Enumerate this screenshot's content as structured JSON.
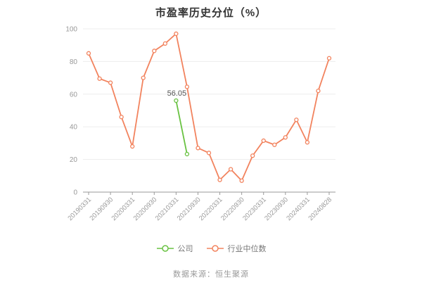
{
  "page": {
    "title": "市盈率历史分位（%）",
    "source_text": "数据来源：恒生聚源"
  },
  "colors": {
    "company_series": "#69c242",
    "industry_series": "#f2835e",
    "grid": "#ededed",
    "axis": "#999999",
    "axis_text": "#999999",
    "annotation_text": "#555555",
    "title_text": "#333333"
  },
  "chart_data": {
    "type": "line",
    "title": "市盈率历史分位（%）",
    "categories": [
      "20190331",
      "20190630",
      "20190930",
      "20191231",
      "20200331",
      "20200630",
      "20200930",
      "20201231",
      "20210331",
      "20210630",
      "20210930",
      "20211231",
      "20220331",
      "20220630",
      "20220930",
      "20221231",
      "20230331",
      "20230630",
      "20230930",
      "20231231",
      "20240331",
      "20240630",
      "20240828"
    ],
    "x_tick_labels_shown": [
      "20190331",
      "20190930",
      "20200331",
      "20200930",
      "20210331",
      "20210930",
      "20220331",
      "20220930",
      "20230331",
      "20230930",
      "20240331",
      "20240828"
    ],
    "series": [
      {
        "name": "公司",
        "color": "#69c242",
        "values": [
          null,
          null,
          null,
          null,
          null,
          null,
          null,
          null,
          56.05,
          23.3,
          null,
          null,
          null,
          null,
          null,
          null,
          null,
          null,
          null,
          null,
          null,
          null,
          null
        ]
      },
      {
        "name": "行业中位数",
        "color": "#f2835e",
        "values": [
          85,
          69.5,
          67,
          46,
          28,
          70,
          86.5,
          91,
          97,
          64.5,
          27,
          24,
          7.5,
          14,
          7,
          22.3,
          31.5,
          29,
          33.5,
          44.3,
          30.5,
          62,
          82
        ]
      }
    ],
    "y_ticks": [
      0,
      20,
      40,
      60,
      80,
      100
    ],
    "ylim": [
      0,
      100
    ],
    "grid": true,
    "legend_position": "bottom",
    "annotations": [
      {
        "text": "56.05",
        "series_index": 0,
        "point_index": 8
      }
    ]
  }
}
